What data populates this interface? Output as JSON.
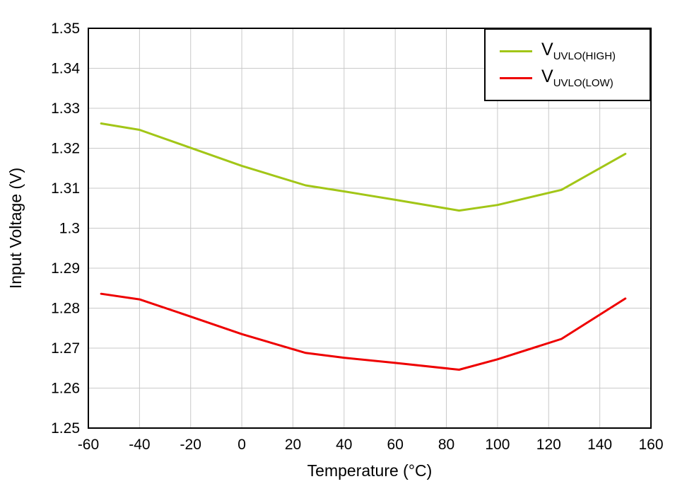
{
  "chart_data": {
    "type": "line",
    "title": "",
    "xlabel": "Temperature (°C)",
    "ylabel": "Input Voltage (V)",
    "xlim": [
      -60,
      160
    ],
    "ylim": [
      1.25,
      1.35
    ],
    "xticks": [
      -60,
      -40,
      -20,
      0,
      20,
      40,
      60,
      80,
      100,
      120,
      140,
      160
    ],
    "xtick_labels": [
      "-60",
      "-40",
      "-20",
      "0",
      "20",
      "40",
      "60",
      "80",
      "100",
      "120",
      "140",
      "160"
    ],
    "yticks": [
      1.25,
      1.26,
      1.27,
      1.28,
      1.29,
      1.3,
      1.31,
      1.32,
      1.33,
      1.34,
      1.35
    ],
    "ytick_labels": [
      "1.25",
      "1.26",
      "1.27",
      "1.28",
      "1.29",
      "1.3",
      "1.31",
      "1.32",
      "1.33",
      "1.34",
      "1.35"
    ],
    "grid": true,
    "legend_position": "top-right",
    "x": [
      -55,
      -40,
      -20,
      0,
      25,
      40,
      60,
      85,
      100,
      125,
      150
    ],
    "series": [
      {
        "id": "uvlo-high",
        "name": "VUVLO(HIGH)",
        "legend_main": "V",
        "legend_sub": "UVLO(HIGH)",
        "color": "#A2C617",
        "values": [
          1.3262,
          1.3246,
          1.3201,
          1.3156,
          1.3107,
          1.3092,
          1.3071,
          1.3044,
          1.3058,
          1.3096,
          1.3186
        ]
      },
      {
        "id": "uvlo-low",
        "name": "VUVLO(LOW)",
        "legend_main": "V",
        "legend_sub": "UVLO(LOW)",
        "color": "#EE0000",
        "values": [
          1.2836,
          1.2822,
          1.2779,
          1.2735,
          1.2688,
          1.2676,
          1.2663,
          1.2646,
          1.2672,
          1.2723,
          1.2824
        ]
      }
    ]
  }
}
